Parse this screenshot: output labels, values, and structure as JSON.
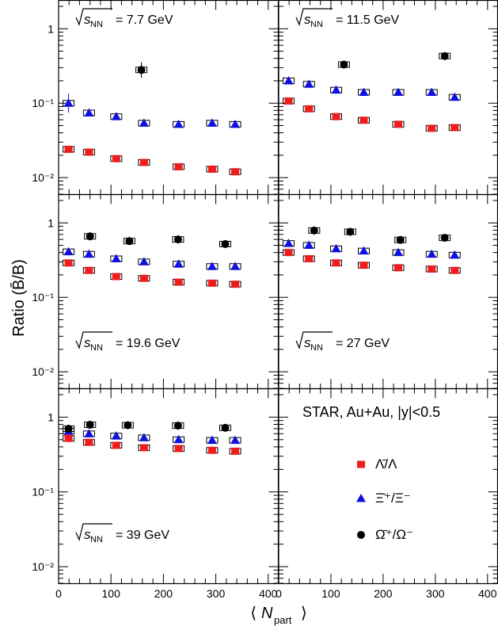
{
  "figure": {
    "ylabel": "Ratio (B̄/B)",
    "xlabel_main": "N",
    "xlabel_sub": "part",
    "xlabel_open": "⟨",
    "xlabel_close": "⟩",
    "header": "STAR, Au+Au, |y|<0.5",
    "legend": [
      {
        "label": "Λ̄/Λ",
        "marker": "square",
        "color": "#ee1c1c"
      },
      {
        "label": "Ξ̄⁺/Ξ⁻",
        "marker": "triangle",
        "color": "#1010e0"
      },
      {
        "label": "Ω̄⁺/Ω⁻",
        "marker": "circle",
        "color": "#000000"
      }
    ]
  },
  "chart_data": [
    {
      "type": "scatter",
      "panel": "7.7",
      "label": "7.7 GeV",
      "log_y": true,
      "ylim": [
        0.006,
        2
      ],
      "xlim": [
        0,
        420
      ],
      "x_ticks": [
        "0",
        "100",
        "200",
        "300",
        "400"
      ],
      "y_ticks": [
        "10⁻²",
        "10⁻¹",
        "1"
      ],
      "series": [
        {
          "name": "Λ̄/Λ",
          "x": [
            19,
            58,
            110,
            163,
            229,
            293,
            337
          ],
          "values": [
            0.024,
            0.022,
            0.018,
            0.016,
            0.014,
            0.013,
            0.012
          ]
        },
        {
          "name": "Ξ̄⁺/Ξ⁻",
          "x": [
            19,
            58,
            110,
            163,
            229,
            293,
            337
          ],
          "values": [
            0.1,
            0.074,
            0.066,
            0.054,
            0.052,
            0.054,
            0.052
          ]
        },
        {
          "name": "Ω̄⁺/Ω⁻",
          "x": [
            158
          ],
          "values": [
            0.28
          ]
        }
      ]
    },
    {
      "type": "scatter",
      "panel": "11.5",
      "label": "11.5 GeV",
      "log_y": true,
      "ylim": [
        0.006,
        2
      ],
      "xlim": [
        0,
        420
      ],
      "x_ticks": [
        "0",
        "100",
        "200",
        "300",
        "400"
      ],
      "series": [
        {
          "name": "Λ̄/Λ",
          "x": [
            19,
            58,
            110,
            163,
            229,
            293,
            337
          ],
          "values": [
            0.107,
            0.084,
            0.066,
            0.059,
            0.052,
            0.046,
            0.047
          ]
        },
        {
          "name": "Ξ̄⁺/Ξ⁻",
          "x": [
            19,
            58,
            110,
            163,
            229,
            293,
            337
          ],
          "values": [
            0.2,
            0.18,
            0.15,
            0.14,
            0.14,
            0.14,
            0.12
          ]
        },
        {
          "name": "Ω̄⁺/Ω⁻",
          "x": [
            125,
            318
          ],
          "values": [
            0.33,
            0.43
          ]
        }
      ]
    },
    {
      "type": "scatter",
      "panel": "19.6",
      "label": "19.6 GeV",
      "log_y": true,
      "ylim": [
        0.006,
        2
      ],
      "xlim": [
        0,
        420
      ],
      "x_ticks": [
        "0",
        "100",
        "200",
        "300",
        "400"
      ],
      "y_ticks": [
        "10⁻²",
        "10⁻¹",
        "1"
      ],
      "series": [
        {
          "name": "Λ̄/Λ",
          "x": [
            19,
            58,
            110,
            163,
            229,
            293,
            337
          ],
          "values": [
            0.29,
            0.23,
            0.19,
            0.18,
            0.16,
            0.155,
            0.15
          ]
        },
        {
          "name": "Ξ̄⁺/Ξ⁻",
          "x": [
            19,
            58,
            110,
            163,
            229,
            293,
            337
          ],
          "values": [
            0.41,
            0.38,
            0.33,
            0.3,
            0.28,
            0.26,
            0.26
          ]
        },
        {
          "name": "Ω̄⁺/Ω⁻",
          "x": [
            60,
            135,
            228,
            318
          ],
          "values": [
            0.66,
            0.57,
            0.6,
            0.52
          ]
        }
      ]
    },
    {
      "type": "scatter",
      "panel": "27",
      "label": "27 GeV",
      "log_y": true,
      "ylim": [
        0.006,
        2
      ],
      "xlim": [
        0,
        420
      ],
      "x_ticks": [
        "0",
        "100",
        "200",
        "300",
        "400"
      ],
      "series": [
        {
          "name": "Λ̄/Λ",
          "x": [
            19,
            58,
            110,
            163,
            229,
            293,
            337
          ],
          "values": [
            0.4,
            0.33,
            0.29,
            0.27,
            0.25,
            0.24,
            0.23
          ]
        },
        {
          "name": "Ξ̄⁺/Ξ⁻",
          "x": [
            19,
            58,
            110,
            163,
            229,
            293,
            337
          ],
          "values": [
            0.53,
            0.5,
            0.45,
            0.42,
            0.4,
            0.38,
            0.37
          ]
        },
        {
          "name": "Ω̄⁺/Ω⁻",
          "x": [
            68,
            137,
            233,
            318
          ],
          "values": [
            0.79,
            0.76,
            0.59,
            0.63
          ]
        }
      ]
    },
    {
      "type": "scatter",
      "panel": "39",
      "label": "39 GeV",
      "log_y": true,
      "ylim": [
        0.006,
        2
      ],
      "xlim": [
        0,
        420
      ],
      "x_ticks": [
        "0",
        "100",
        "200",
        "300",
        "400"
      ],
      "y_ticks": [
        "10⁻²",
        "10⁻¹",
        "1"
      ],
      "series": [
        {
          "name": "Λ̄/Λ",
          "x": [
            19,
            58,
            110,
            163,
            229,
            293,
            337
          ],
          "values": [
            0.52,
            0.46,
            0.42,
            0.39,
            0.38,
            0.36,
            0.35
          ]
        },
        {
          "name": "Ξ̄⁺/Ξ⁻",
          "x": [
            19,
            58,
            110,
            163,
            229,
            293,
            337
          ],
          "values": [
            0.65,
            0.6,
            0.56,
            0.53,
            0.5,
            0.49,
            0.49
          ]
        },
        {
          "name": "Ω̄⁺/Ω⁻",
          "x": [
            19,
            60,
            132,
            228,
            318
          ],
          "values": [
            0.7,
            0.79,
            0.78,
            0.77,
            0.72
          ]
        }
      ]
    }
  ]
}
